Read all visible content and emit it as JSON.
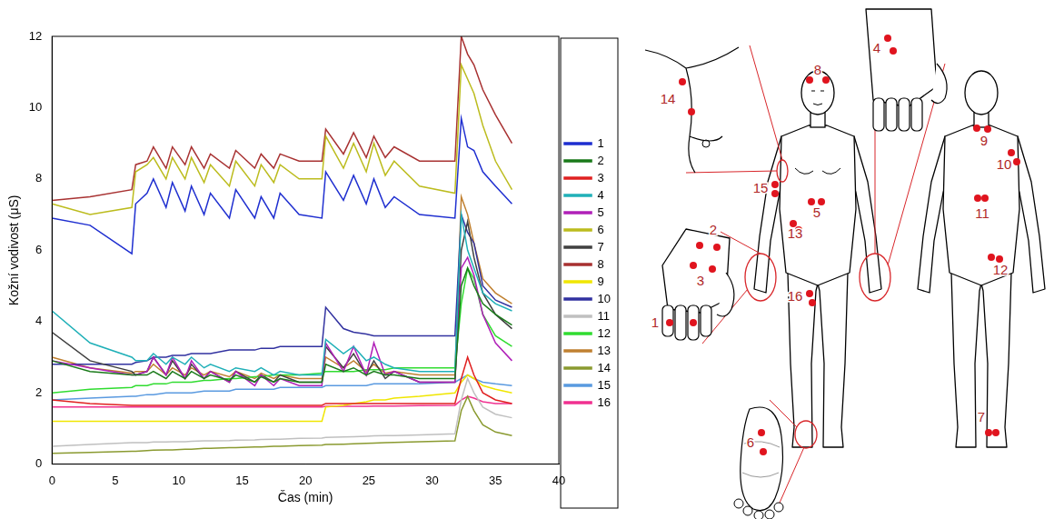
{
  "chart_data": {
    "type": "line",
    "x_label": "Čas (min)",
    "y_label": "Kožní vodivost (μS)",
    "x": [
      0,
      3,
      6.3,
      6.6,
      7.5,
      8,
      9,
      9.5,
      10.5,
      11,
      12,
      12.5,
      14,
      14.5,
      16,
      16.5,
      17.5,
      18,
      19.5,
      21.3,
      21.6,
      23,
      23.8,
      24.8,
      25.4,
      26.3,
      27,
      29,
      31.8,
      32.3,
      32.8,
      33.3,
      34,
      35,
      36.3
    ],
    "series": [
      {
        "name": "1",
        "color": "#1f2fd0",
        "values": [
          6.9,
          6.7,
          5.9,
          7.3,
          7.6,
          8.0,
          7.2,
          7.9,
          7.1,
          7.8,
          7.0,
          7.6,
          6.9,
          7.7,
          6.9,
          7.5,
          6.9,
          7.6,
          7.0,
          6.9,
          8.2,
          7.4,
          8.1,
          7.3,
          8.0,
          7.2,
          7.5,
          7.0,
          6.9,
          9.7,
          8.9,
          8.8,
          8.2,
          7.8,
          7.3
        ]
      },
      {
        "name": "2",
        "color": "#1a7a1a",
        "values": [
          2.9,
          2.6,
          2.5,
          2.5,
          2.5,
          2.6,
          2.4,
          2.6,
          2.4,
          2.6,
          2.4,
          2.5,
          2.35,
          2.5,
          2.3,
          2.45,
          2.3,
          2.4,
          2.3,
          2.3,
          2.8,
          2.6,
          2.7,
          2.5,
          2.6,
          2.5,
          2.5,
          2.4,
          2.4,
          5.0,
          5.5,
          5.0,
          4.5,
          4.2,
          3.9
        ]
      },
      {
        "name": "3",
        "color": "#e02020",
        "values": [
          1.8,
          1.7,
          1.65,
          1.65,
          1.65,
          1.65,
          1.65,
          1.65,
          1.65,
          1.65,
          1.65,
          1.65,
          1.65,
          1.65,
          1.65,
          1.65,
          1.65,
          1.65,
          1.65,
          1.65,
          1.7,
          1.7,
          1.7,
          1.7,
          1.7,
          1.7,
          1.7,
          1.7,
          1.7,
          2.4,
          3.0,
          2.5,
          2.0,
          1.8,
          1.7
        ]
      },
      {
        "name": "4",
        "color": "#20b0b8",
        "values": [
          4.3,
          3.4,
          3.0,
          2.9,
          2.9,
          3.1,
          2.8,
          3.0,
          2.8,
          3.0,
          2.7,
          2.8,
          2.6,
          2.7,
          2.6,
          2.7,
          2.5,
          2.6,
          2.5,
          2.5,
          3.5,
          3.1,
          3.3,
          2.9,
          3.0,
          2.8,
          2.7,
          2.6,
          2.6,
          7.0,
          6.0,
          5.5,
          4.8,
          4.5,
          4.3
        ]
      },
      {
        "name": "5",
        "color": "#b020b8",
        "values": [
          2.9,
          2.7,
          2.5,
          2.5,
          2.6,
          3.0,
          2.5,
          3.0,
          2.4,
          2.9,
          2.4,
          2.6,
          2.3,
          2.6,
          2.2,
          2.5,
          2.2,
          2.4,
          2.2,
          2.2,
          3.4,
          2.6,
          3.3,
          2.5,
          3.4,
          2.5,
          2.6,
          2.3,
          2.3,
          5.5,
          5.8,
          5.3,
          4.2,
          3.4,
          2.9
        ]
      },
      {
        "name": "6",
        "color": "#bcbc1e",
        "values": [
          7.3,
          7.0,
          7.2,
          8.2,
          8.4,
          8.6,
          8.0,
          8.6,
          8.0,
          8.6,
          7.9,
          8.4,
          7.8,
          8.5,
          7.8,
          8.4,
          7.9,
          8.4,
          8.0,
          8.0,
          9.2,
          8.3,
          9.0,
          8.2,
          9.0,
          8.1,
          8.5,
          7.8,
          7.6,
          11.2,
          10.8,
          10.4,
          9.5,
          8.5,
          7.7
        ]
      },
      {
        "name": "7",
        "color": "#404040",
        "values": [
          3.7,
          2.9,
          2.6,
          2.5,
          2.6,
          3.0,
          2.5,
          2.9,
          2.4,
          2.8,
          2.4,
          2.6,
          2.3,
          2.6,
          2.3,
          2.5,
          2.3,
          2.5,
          2.3,
          2.3,
          3.3,
          2.7,
          3.1,
          2.5,
          2.9,
          2.4,
          2.6,
          2.3,
          2.3,
          6.0,
          6.8,
          5.8,
          4.8,
          4.2,
          3.8
        ]
      },
      {
        "name": "8",
        "color": "#a83232",
        "values": [
          7.4,
          7.5,
          7.7,
          8.4,
          8.5,
          8.9,
          8.3,
          8.9,
          8.4,
          8.9,
          8.3,
          8.7,
          8.3,
          8.8,
          8.3,
          8.7,
          8.3,
          8.7,
          8.5,
          8.5,
          9.4,
          8.7,
          9.3,
          8.6,
          9.2,
          8.6,
          8.9,
          8.5,
          8.5,
          12.0,
          11.5,
          11.2,
          10.5,
          9.8,
          9.0
        ]
      },
      {
        "name": "9",
        "color": "#f0e600",
        "values": [
          1.2,
          1.2,
          1.2,
          1.2,
          1.2,
          1.2,
          1.2,
          1.2,
          1.2,
          1.2,
          1.2,
          1.2,
          1.2,
          1.2,
          1.2,
          1.2,
          1.2,
          1.2,
          1.2,
          1.2,
          1.6,
          1.65,
          1.7,
          1.75,
          1.8,
          1.8,
          1.85,
          1.9,
          2.0,
          2.3,
          2.5,
          2.4,
          2.2,
          2.1,
          2.0
        ]
      },
      {
        "name": "10",
        "color": "#3232a0",
        "values": [
          2.8,
          2.8,
          2.8,
          2.85,
          2.9,
          3.0,
          3.0,
          3.05,
          3.05,
          3.1,
          3.1,
          3.1,
          3.2,
          3.2,
          3.2,
          3.25,
          3.25,
          3.3,
          3.3,
          3.3,
          4.4,
          3.8,
          3.7,
          3.65,
          3.6,
          3.6,
          3.6,
          3.6,
          3.6,
          7.0,
          6.5,
          6.2,
          5.0,
          4.6,
          4.4
        ]
      },
      {
        "name": "11",
        "color": "#c0c0c0",
        "values": [
          0.5,
          0.55,
          0.6,
          0.6,
          0.6,
          0.62,
          0.62,
          0.63,
          0.63,
          0.64,
          0.65,
          0.65,
          0.66,
          0.67,
          0.68,
          0.69,
          0.7,
          0.7,
          0.72,
          0.73,
          0.75,
          0.76,
          0.77,
          0.78,
          0.79,
          0.8,
          0.8,
          0.82,
          0.85,
          1.8,
          2.4,
          2.0,
          1.6,
          1.4,
          1.3
        ]
      },
      {
        "name": "12",
        "color": "#30dc30",
        "values": [
          2.0,
          2.1,
          2.15,
          2.2,
          2.2,
          2.25,
          2.25,
          2.3,
          2.3,
          2.3,
          2.35,
          2.35,
          2.4,
          2.4,
          2.45,
          2.45,
          2.5,
          2.5,
          2.5,
          2.55,
          2.6,
          2.6,
          2.6,
          2.65,
          2.65,
          2.65,
          2.7,
          2.7,
          2.7,
          4.5,
          5.5,
          5.2,
          4.2,
          3.6,
          3.3
        ]
      },
      {
        "name": "13",
        "color": "#c08030",
        "values": [
          3.0,
          2.7,
          2.55,
          2.6,
          2.6,
          2.8,
          2.5,
          2.7,
          2.5,
          2.7,
          2.5,
          2.6,
          2.45,
          2.6,
          2.4,
          2.55,
          2.4,
          2.5,
          2.4,
          2.4,
          3.0,
          2.7,
          2.9,
          2.6,
          2.8,
          2.55,
          2.6,
          2.5,
          2.5,
          7.5,
          7.0,
          6.2,
          5.2,
          4.8,
          4.5
        ]
      },
      {
        "name": "14",
        "color": "#8a9a30",
        "values": [
          0.3,
          0.33,
          0.36,
          0.36,
          0.38,
          0.39,
          0.4,
          0.4,
          0.42,
          0.42,
          0.44,
          0.44,
          0.46,
          0.46,
          0.48,
          0.48,
          0.5,
          0.5,
          0.52,
          0.53,
          0.55,
          0.56,
          0.57,
          0.58,
          0.59,
          0.6,
          0.61,
          0.63,
          0.65,
          1.5,
          1.9,
          1.5,
          1.1,
          0.9,
          0.8
        ]
      },
      {
        "name": "15",
        "color": "#5a9ae0",
        "values": [
          1.8,
          1.85,
          1.9,
          1.9,
          1.95,
          1.95,
          2.0,
          2.0,
          2.0,
          2.0,
          2.05,
          2.05,
          2.05,
          2.1,
          2.1,
          2.1,
          2.1,
          2.15,
          2.15,
          2.15,
          2.2,
          2.2,
          2.2,
          2.2,
          2.25,
          2.25,
          2.25,
          2.25,
          2.3,
          2.4,
          2.5,
          2.4,
          2.3,
          2.25,
          2.2
        ]
      },
      {
        "name": "16",
        "color": "#f03090",
        "values": [
          1.6,
          1.6,
          1.6,
          1.6,
          1.6,
          1.6,
          1.6,
          1.6,
          1.6,
          1.6,
          1.6,
          1.6,
          1.6,
          1.6,
          1.6,
          1.6,
          1.6,
          1.6,
          1.6,
          1.6,
          1.62,
          1.62,
          1.62,
          1.62,
          1.63,
          1.63,
          1.63,
          1.64,
          1.65,
          1.8,
          1.9,
          1.85,
          1.75,
          1.7,
          1.7
        ]
      }
    ],
    "xlim": [
      0,
      40
    ],
    "xticks": [
      0,
      5,
      10,
      15,
      20,
      25,
      30,
      35,
      40
    ],
    "ylim": [
      0,
      12
    ],
    "yticks": [
      0,
      2,
      4,
      6,
      8,
      10,
      12
    ],
    "grid": false,
    "legend": "right"
  },
  "diagram": {
    "sites": [
      "1",
      "2",
      "3",
      "4",
      "5",
      "6",
      "7",
      "8",
      "9",
      "10",
      "11",
      "12",
      "13",
      "14",
      "15",
      "16"
    ]
  }
}
